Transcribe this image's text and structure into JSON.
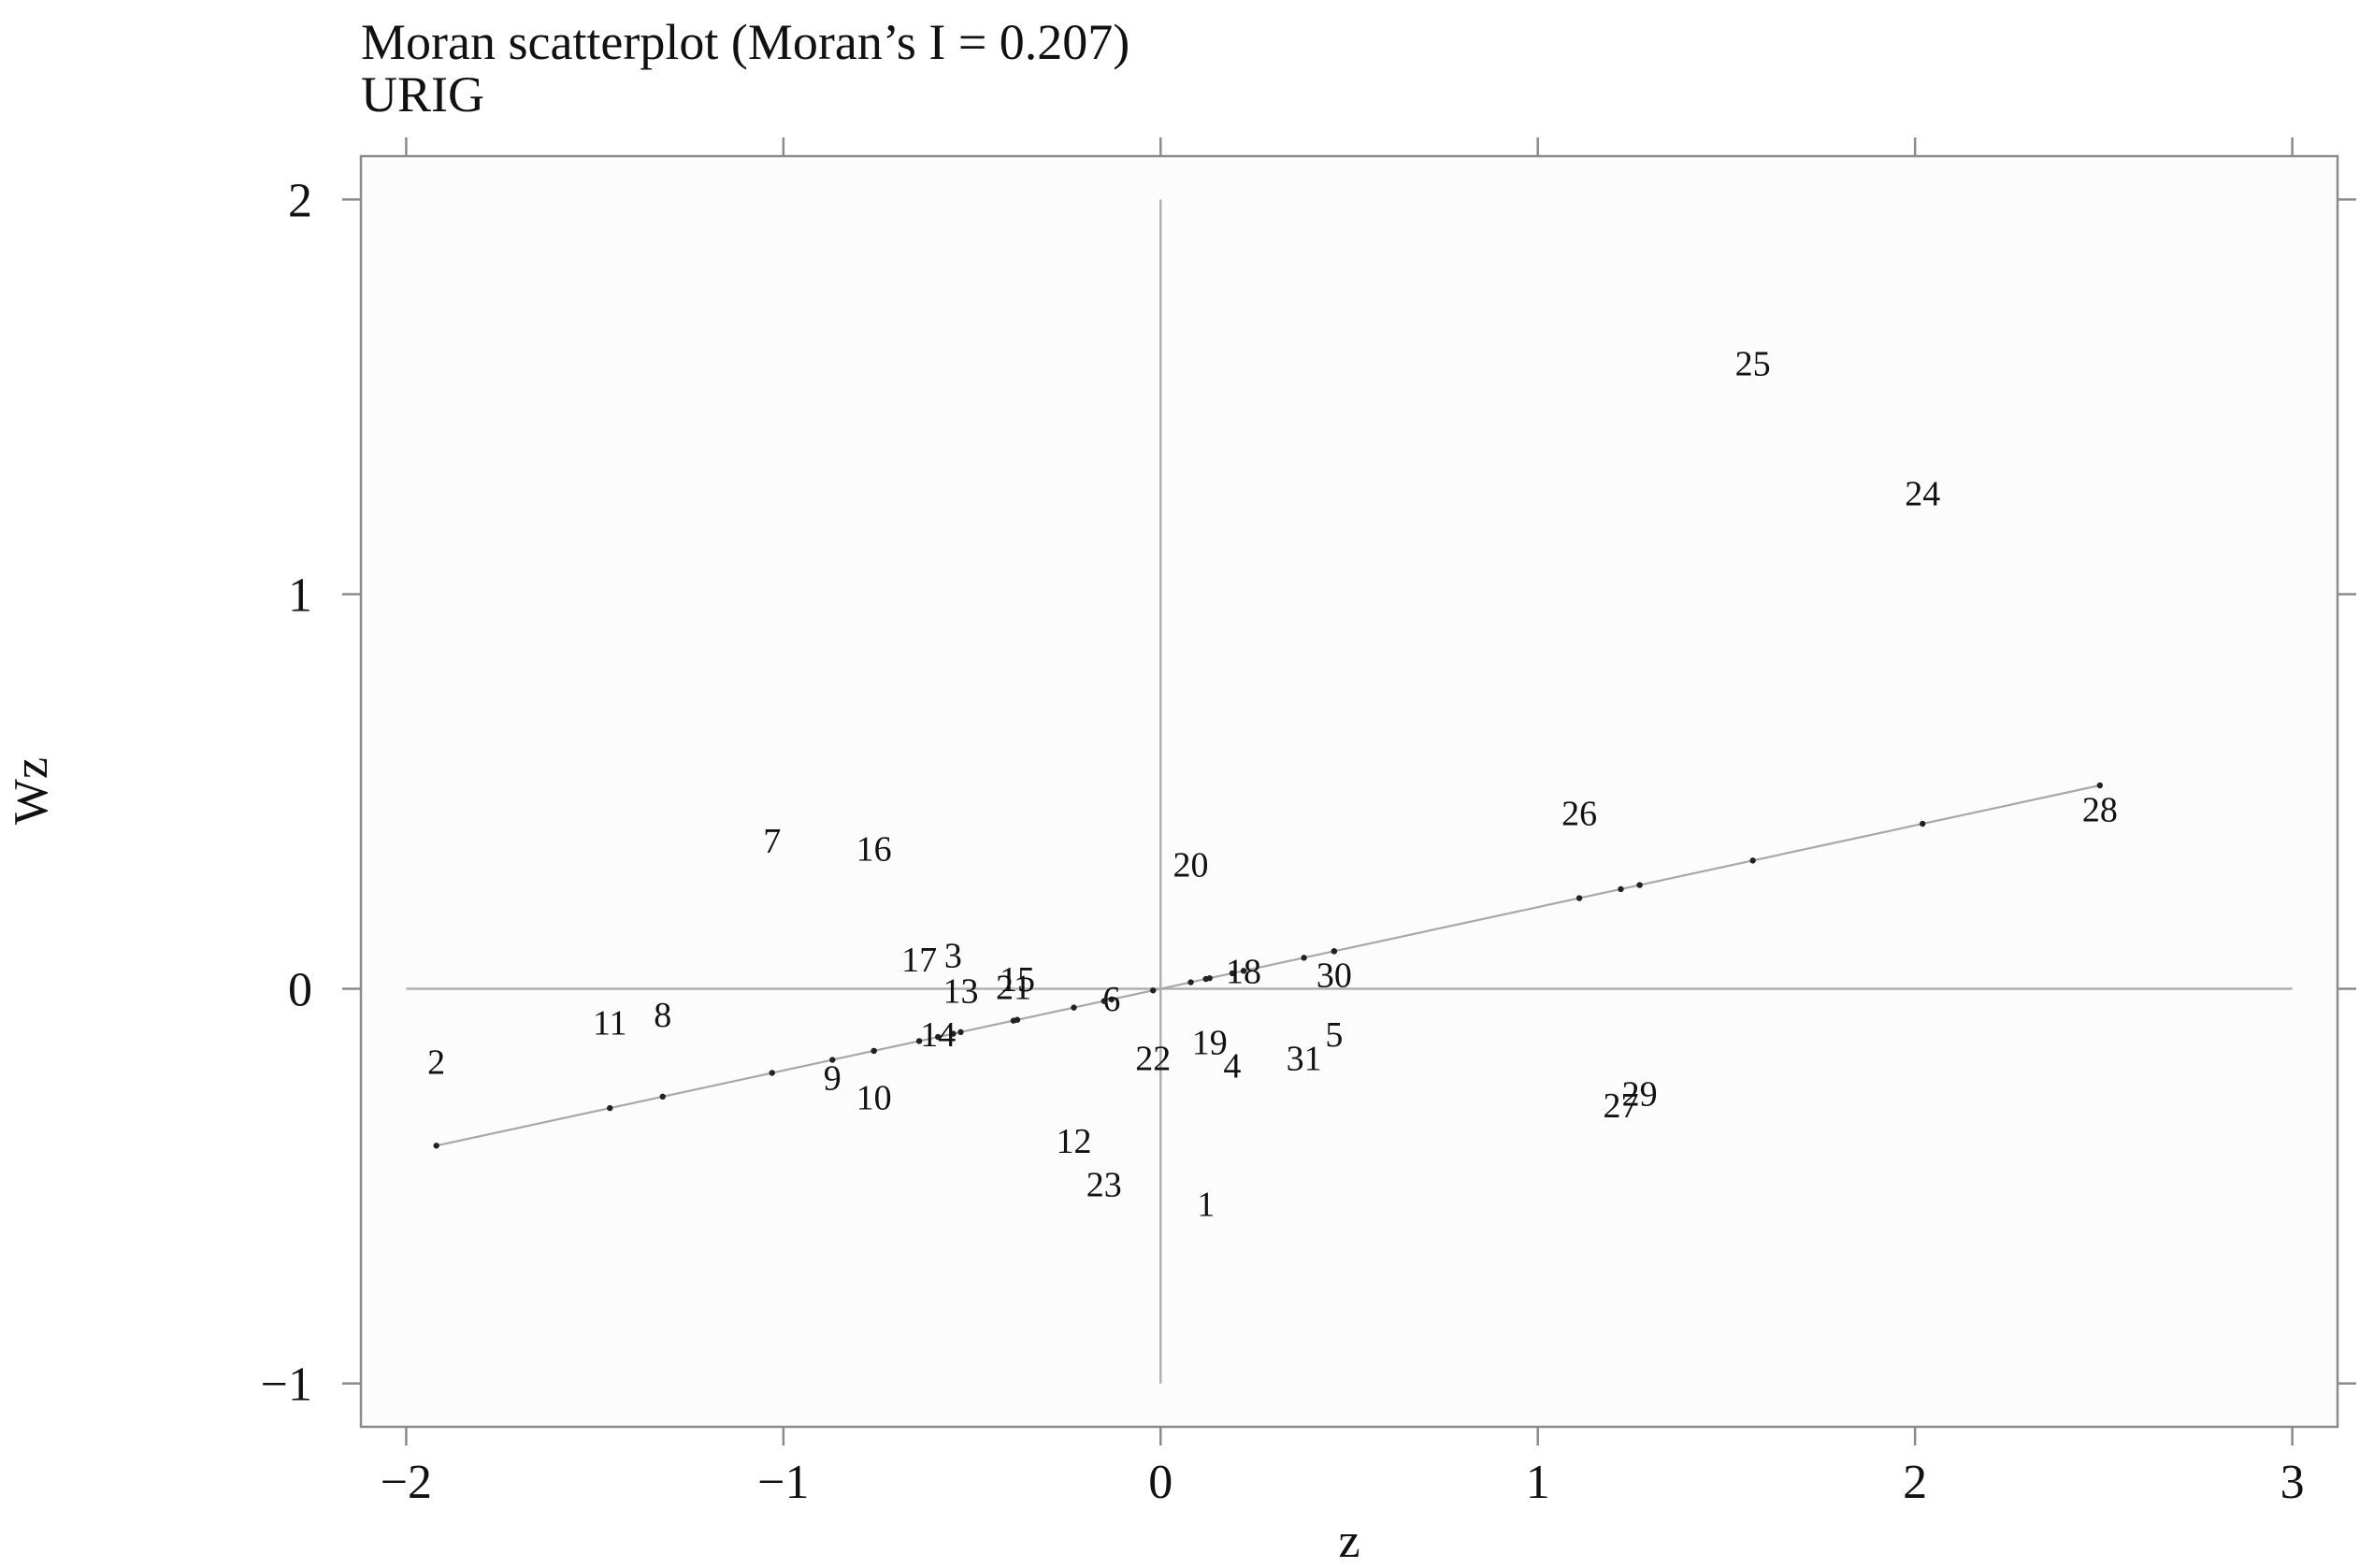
{
  "chart_data": {
    "type": "scatter",
    "title": "Moran scatterplot (Moran’s I = 0.207)",
    "subtitle": "URIG",
    "xlabel": "z",
    "ylabel": "Wz",
    "xlim": [
      -2.12,
      3.12
    ],
    "ylim": [
      -1.11,
      2.11
    ],
    "x_ticks": [
      -2,
      -1,
      0,
      1,
      2,
      3
    ],
    "y_ticks": [
      -1,
      0,
      1,
      2
    ],
    "x_tick_labels": [
      "−2",
      "−1",
      "0",
      "1",
      "2",
      "3"
    ],
    "y_tick_labels": [
      "−1",
      "0",
      "1",
      "2"
    ],
    "grid": false,
    "legend": "none",
    "reference_lines": {
      "x": 0,
      "y": 0
    },
    "fit_line": {
      "slope": 0.207,
      "x_range": [
        -1.92,
        2.49
      ]
    },
    "points": [
      {
        "label": "1",
        "x": 0.12,
        "y": -0.54
      },
      {
        "label": "2",
        "x": -1.92,
        "y": -0.18
      },
      {
        "label": "3",
        "x": -0.55,
        "y": 0.09
      },
      {
        "label": "4",
        "x": 0.19,
        "y": -0.19
      },
      {
        "label": "5",
        "x": 0.46,
        "y": -0.11
      },
      {
        "label": "6",
        "x": -0.13,
        "y": -0.02
      },
      {
        "label": "7",
        "x": -1.03,
        "y": 0.38
      },
      {
        "label": "8",
        "x": -1.32,
        "y": -0.06
      },
      {
        "label": "9",
        "x": -0.87,
        "y": -0.22
      },
      {
        "label": "10",
        "x": -0.76,
        "y": -0.27
      },
      {
        "label": "11",
        "x": -1.46,
        "y": -0.08
      },
      {
        "label": "12",
        "x": -0.23,
        "y": -0.38
      },
      {
        "label": "13",
        "x": -0.53,
        "y": 0.0
      },
      {
        "label": "14",
        "x": -0.59,
        "y": -0.11
      },
      {
        "label": "15",
        "x": -0.38,
        "y": 0.03
      },
      {
        "label": "16",
        "x": -0.76,
        "y": 0.36
      },
      {
        "label": "17",
        "x": -0.64,
        "y": 0.08
      },
      {
        "label": "18",
        "x": 0.22,
        "y": 0.05
      },
      {
        "label": "19",
        "x": 0.13,
        "y": -0.13
      },
      {
        "label": "20",
        "x": 0.08,
        "y": 0.32
      },
      {
        "label": "21",
        "x": -0.39,
        "y": 0.01
      },
      {
        "label": "22",
        "x": -0.02,
        "y": -0.17
      },
      {
        "label": "23",
        "x": -0.15,
        "y": -0.49
      },
      {
        "label": "24",
        "x": 2.02,
        "y": 1.26
      },
      {
        "label": "25",
        "x": 1.57,
        "y": 1.59
      },
      {
        "label": "26",
        "x": 1.11,
        "y": 0.45
      },
      {
        "label": "27",
        "x": 1.22,
        "y": -0.29
      },
      {
        "label": "28",
        "x": 2.49,
        "y": 0.46
      },
      {
        "label": "29",
        "x": 1.27,
        "y": -0.26
      },
      {
        "label": "30",
        "x": 0.46,
        "y": 0.04
      },
      {
        "label": "31",
        "x": 0.38,
        "y": -0.17
      }
    ]
  }
}
